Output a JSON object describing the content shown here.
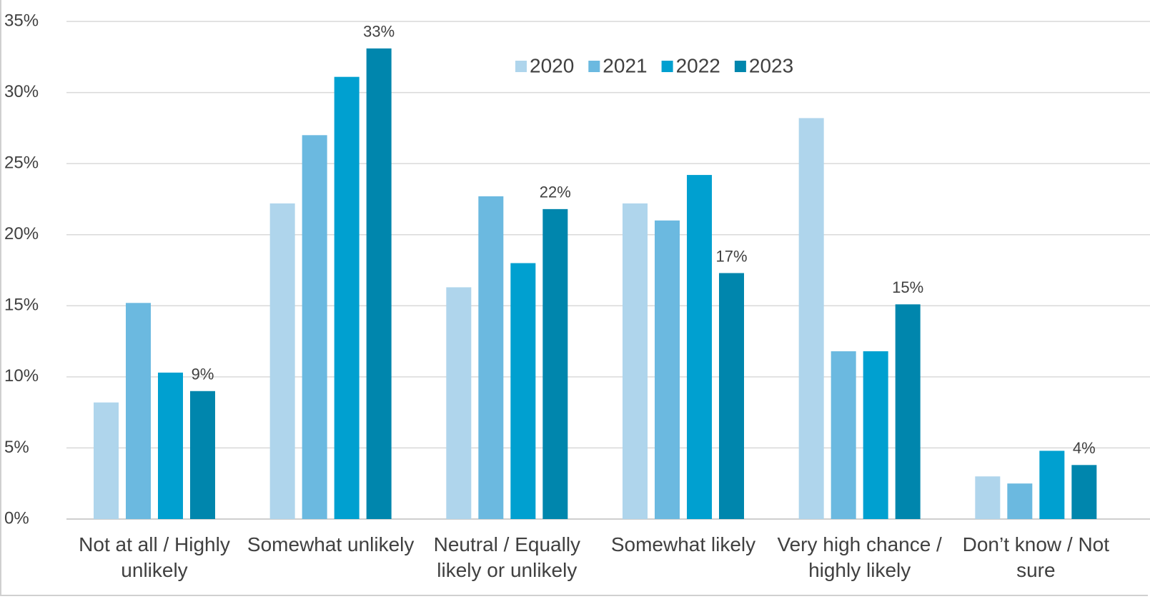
{
  "chart_data": {
    "type": "bar",
    "categories": [
      "Not at all / Highly unlikely",
      "Somewhat unlikely",
      "Neutral / Equally likely or unlikely",
      "Somewhat likely",
      "Very high chance / highly likely",
      "Don’t know / Not sure"
    ],
    "series": [
      {
        "name": "2020",
        "color": "#afd5ec",
        "values": [
          8.2,
          22.2,
          16.3,
          22.2,
          28.2,
          3.0
        ]
      },
      {
        "name": "2021",
        "color": "#6bb9e0",
        "values": [
          15.2,
          27.0,
          22.7,
          21.0,
          11.8,
          2.5
        ]
      },
      {
        "name": "2022",
        "color": "#00a0d0",
        "values": [
          10.3,
          31.1,
          18.0,
          24.2,
          11.8,
          4.8
        ]
      },
      {
        "name": "2023",
        "color": "#0086ad",
        "values": [
          9.0,
          33.1,
          21.8,
          17.3,
          15.1,
          3.8
        ],
        "value_labels": [
          "9%",
          "33%",
          "22%",
          "17%",
          "15%",
          "4%"
        ]
      }
    ],
    "ylim": [
      0,
      35
    ],
    "yticks": [
      {
        "value": 0,
        "label": "0%"
      },
      {
        "value": 5,
        "label": "5%"
      },
      {
        "value": 10,
        "label": "10%"
      },
      {
        "value": 15,
        "label": "15%"
      },
      {
        "value": 20,
        "label": "20%"
      },
      {
        "value": 25,
        "label": "25%"
      },
      {
        "value": 30,
        "label": "30%"
      },
      {
        "value": 35,
        "label": "35%"
      }
    ],
    "grid": true,
    "legend": "top"
  }
}
